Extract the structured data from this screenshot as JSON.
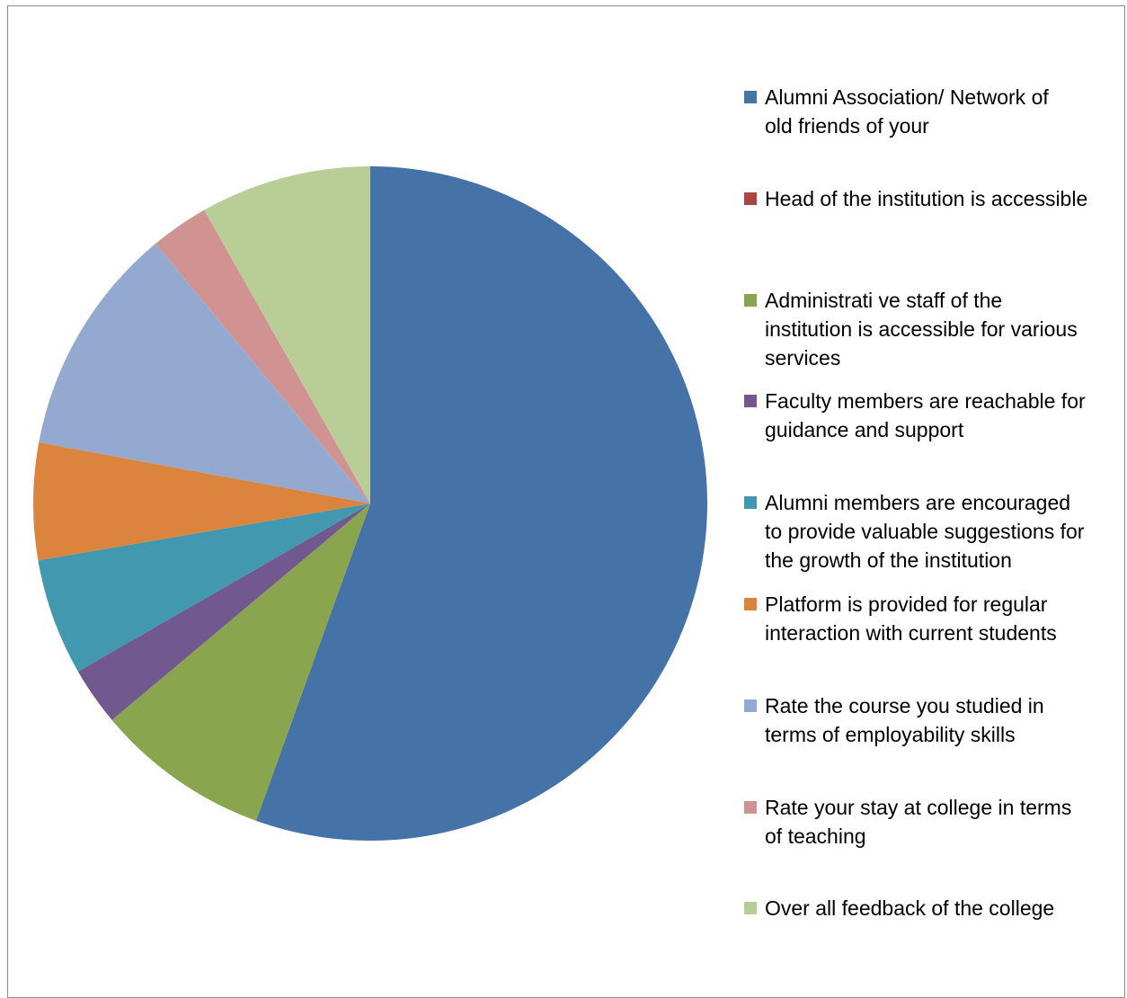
{
  "chart_data": {
    "type": "pie",
    "title": "",
    "legend_position": "right",
    "series": [
      {
        "name": "",
        "slices": [
          {
            "label": "Alumni Association/ Network of\nold friends of your",
            "value": 55.5,
            "color": "#4572A7"
          },
          {
            "label": "Head of the institution is accessible",
            "value": 0,
            "color": "#AA4643"
          },
          {
            "label": "Administrati ve staff of the\ninstitution is accessible for various\nservices",
            "value": 8.4,
            "color": "#89A54E"
          },
          {
            "label": "Faculty members are reachable for\nguidance and support",
            "value": 2.8,
            "color": "#71588F"
          },
          {
            "label": "Alumni members are encouraged\nto provide valuable suggestions for\nthe growth of the institution",
            "value": 5.6,
            "color": "#4198AF"
          },
          {
            "label": "Platform is provided for regular\ninteraction with current students",
            "value": 5.6,
            "color": "#DB843D"
          },
          {
            "label": "Rate the course you studied in\nterms of employability skills",
            "value": 11.1,
            "color": "#93A9CF"
          },
          {
            "label": "Rate your stay at college in terms\nof teaching",
            "value": 2.8,
            "color": "#D19392"
          },
          {
            "label": "Over all feedback of the college",
            "value": 8.2,
            "color": "#B9CD96"
          }
        ]
      }
    ]
  }
}
